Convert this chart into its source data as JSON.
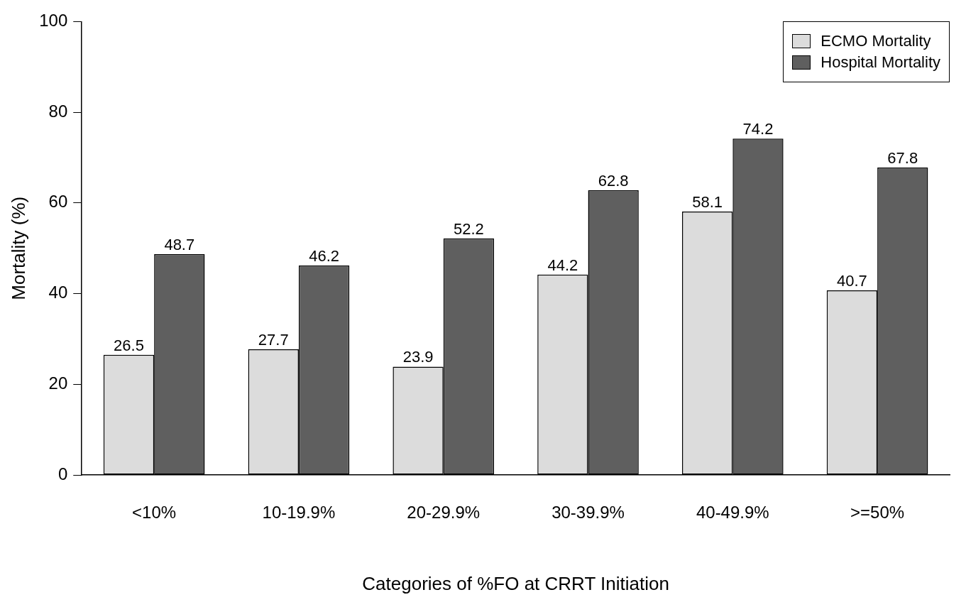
{
  "chart_data": {
    "type": "bar",
    "xlabel": "Categories of %FO at CRRT Initiation",
    "ylabel": "Mortality (%)",
    "categories": [
      "<10%",
      "10-19.9%",
      "20-29.9%",
      "30-39.9%",
      "40-49.9%",
      ">=50%"
    ],
    "series": [
      {
        "name": "ECMO Mortality",
        "color": "#dcdcdc",
        "values": [
          26.5,
          27.7,
          23.9,
          44.2,
          58.1,
          40.7
        ]
      },
      {
        "name": "Hospital Mortality",
        "color": "#5f5f5f",
        "values": [
          48.7,
          46.2,
          52.2,
          62.8,
          74.2,
          67.8
        ]
      }
    ],
    "ylim": [
      0,
      100
    ],
    "yticks": [
      0,
      20,
      40,
      60,
      80,
      100
    ],
    "grid": false,
    "legend": "top right",
    "data_labels": true
  }
}
